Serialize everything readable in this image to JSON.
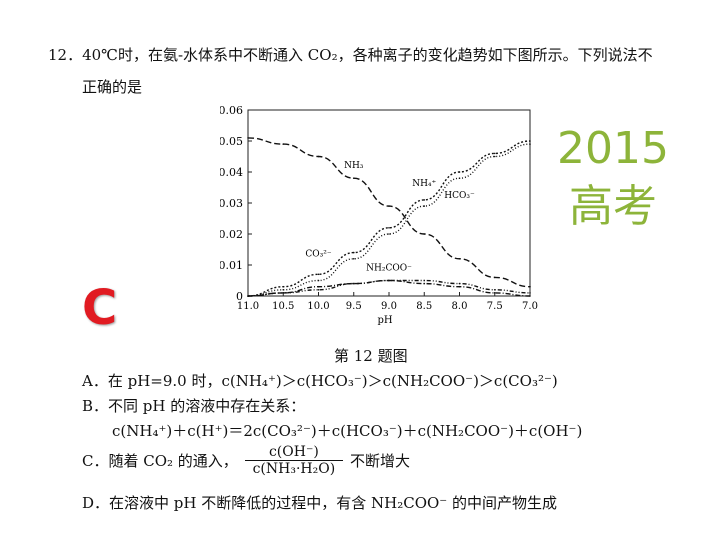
{
  "question": {
    "stem_line1": "12．40℃时，在氨-水体系中不断通入 CO₂，各种离子的变化趋势如下图所示。下列说法不",
    "stem_line2": "正确的是"
  },
  "badge": {
    "year": "2015",
    "label": "高考"
  },
  "answer_letter": "C",
  "figure_caption": "第 12 题图",
  "options": {
    "A": "A．在 pH=9.0 时，c(NH₄⁺)＞c(HCO₃⁻)＞c(NH₂COO⁻)＞c(CO₃²⁻)",
    "B": "B．不同 pH 的溶液中存在关系：",
    "B2": "c(NH₄⁺)＋c(H⁺)＝2c(CO₃²⁻)＋c(HCO₃⁻)＋c(NH₂COO⁻)＋c(OH⁻)",
    "C_pre": "C．随着 CO₂ 的通入，",
    "C_num": "c(OH⁻)",
    "C_den": "c(NH₃·H₂O)",
    "C_post": "不断增大",
    "D": "D．在溶液中 pH 不断降低的过程中，有含 NH₂COO⁻ 的中间产物生成"
  },
  "chart_data": {
    "type": "line",
    "xlabel": "pH",
    "ylabel": "",
    "xlim": [
      11.0,
      7.0
    ],
    "ylim": [
      0,
      0.06
    ],
    "x_ticks": [
      "11.0",
      "10.5",
      "10.0",
      "9.5",
      "9.0",
      "8.5",
      "8.0",
      "7.5",
      "7.0"
    ],
    "y_ticks": [
      "0",
      "0.01",
      "0.02",
      "0.03",
      "0.04",
      "0.05",
      "0.06"
    ],
    "x": [
      11.0,
      10.5,
      10.0,
      9.5,
      9.0,
      8.5,
      8.0,
      7.5,
      7.0
    ],
    "series": [
      {
        "name": "NH₃",
        "values": [
          0.051,
          0.049,
          0.045,
          0.038,
          0.029,
          0.02,
          0.012,
          0.006,
          0.003
        ]
      },
      {
        "name": "NH₄⁺",
        "values": [
          0.0,
          0.003,
          0.007,
          0.014,
          0.022,
          0.031,
          0.04,
          0.046,
          0.05
        ]
      },
      {
        "name": "HCO₃⁻",
        "values": [
          0.0,
          0.002,
          0.005,
          0.012,
          0.02,
          0.029,
          0.038,
          0.045,
          0.049
        ]
      },
      {
        "name": "CO₃²⁻",
        "values": [
          0.0,
          0.001,
          0.003,
          0.004,
          0.005,
          0.004,
          0.003,
          0.001,
          0.0
        ]
      },
      {
        "name": "NH₂COO⁻",
        "values": [
          0.0,
          0.001,
          0.002,
          0.004,
          0.005,
          0.005,
          0.004,
          0.002,
          0.001
        ]
      }
    ]
  }
}
